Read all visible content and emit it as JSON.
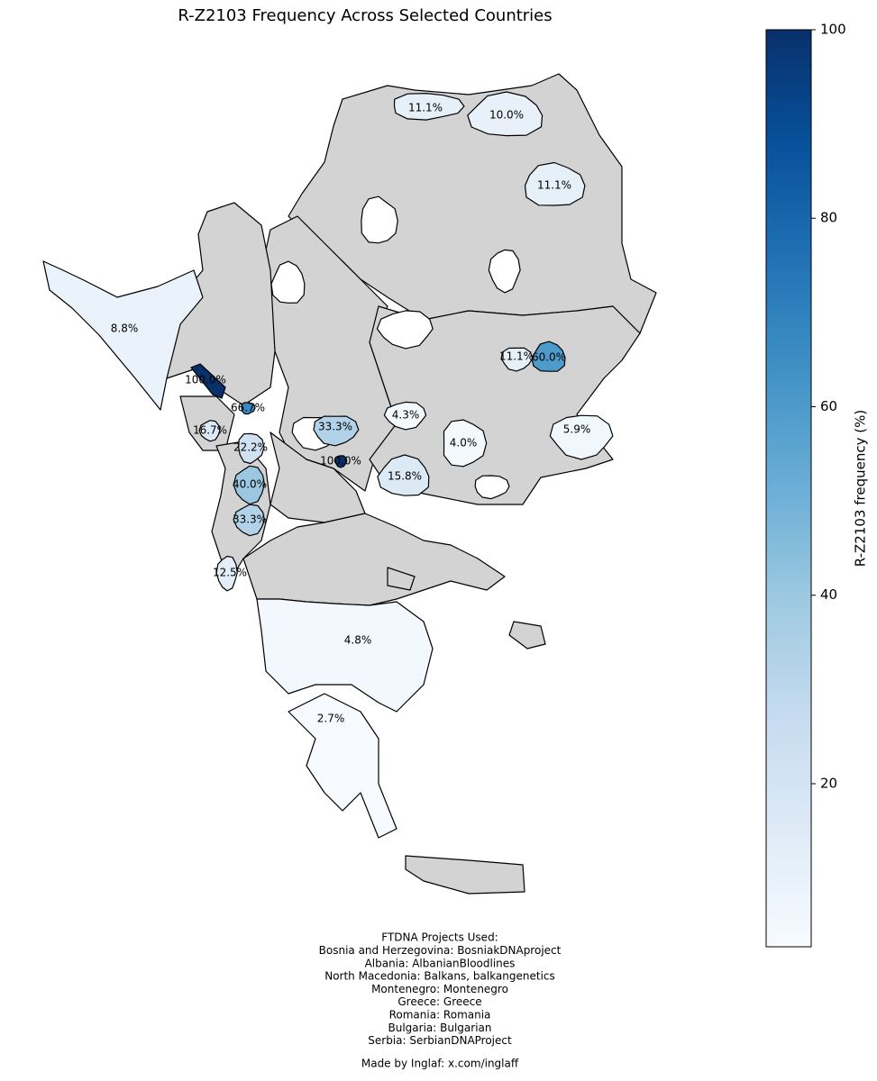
{
  "chart_data": {
    "type": "choropleth",
    "title": "R-Z2103 Frequency Across Selected Countries",
    "values": [
      11.1,
      10.0,
      11.1,
      8.8,
      100.0,
      66.7,
      16.7,
      22.2,
      40.0,
      33.3,
      12.5,
      33.3,
      4.3,
      100.0,
      15.8,
      4.0,
      11.1,
      60.0,
      5.9,
      4.8,
      2.7
    ],
    "value_labels": [
      "11.1%",
      "10.0%",
      "11.1%",
      "8.8%",
      "100.0%",
      "66.7%",
      "16.7%",
      "22.2%",
      "40.0%",
      "33.3%",
      "12.5%",
      "33.3%",
      "4.3%",
      "100.0%",
      "15.8%",
      "4.0%",
      "11.1%",
      "60.0%",
      "5.9%",
      "4.8%",
      "2.7%"
    ],
    "missing_color": "#d3d3d3",
    "colorbar": {
      "label": "R-Z2103 frequency (%)",
      "colormap": "Blues",
      "ylim": [
        2.7,
        100
      ],
      "yticks": [
        20,
        40,
        60,
        80,
        100
      ]
    }
  },
  "footer": {
    "heading": "FTDNA Projects Used:",
    "lines": [
      "Bosnia and Herzegovina: BosniakDNAproject",
      "Albania: AlbanianBloodlines",
      "North Macedonia: Balkans, balkangenetics",
      "Montenegro: Montenegro",
      "Greece: Greece",
      "Romania: Romania",
      "Bulgaria: Bulgarian",
      "Serbia: SerbianDNAProject"
    ],
    "credit": "Made by Inglaf: x.com/inglaff"
  }
}
